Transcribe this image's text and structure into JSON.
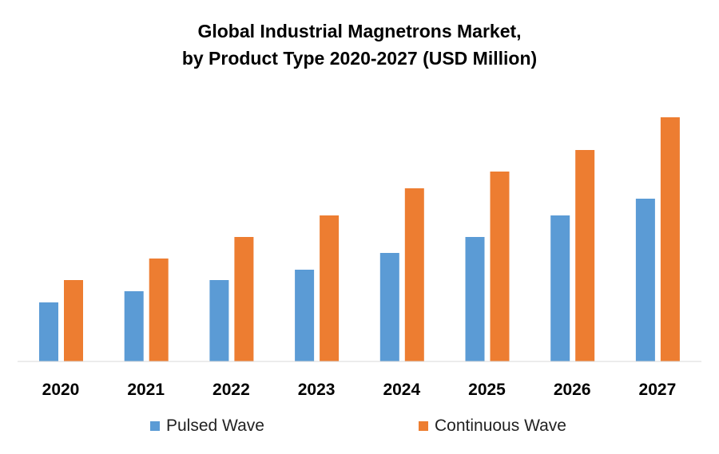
{
  "chart_data": {
    "type": "bar",
    "title_line1": "Global Industrial Magnetrons Market,",
    "title_line2": "by Product Type 2020-2027 (USD Million)",
    "categories": [
      "2020",
      "2021",
      "2022",
      "2023",
      "2024",
      "2025",
      "2026",
      "2027"
    ],
    "series": [
      {
        "name": "Pulsed Wave",
        "color": "#5B9BD5",
        "values": [
          74,
          88,
          102,
          115,
          136,
          156,
          183,
          204
        ]
      },
      {
        "name": "Continuous Wave",
        "color": "#ED7D31",
        "values": [
          102,
          129,
          156,
          183,
          217,
          238,
          265,
          306
        ]
      }
    ],
    "ylim": [
      0,
      330
    ],
    "grid": false,
    "legend_position": "bottom"
  }
}
